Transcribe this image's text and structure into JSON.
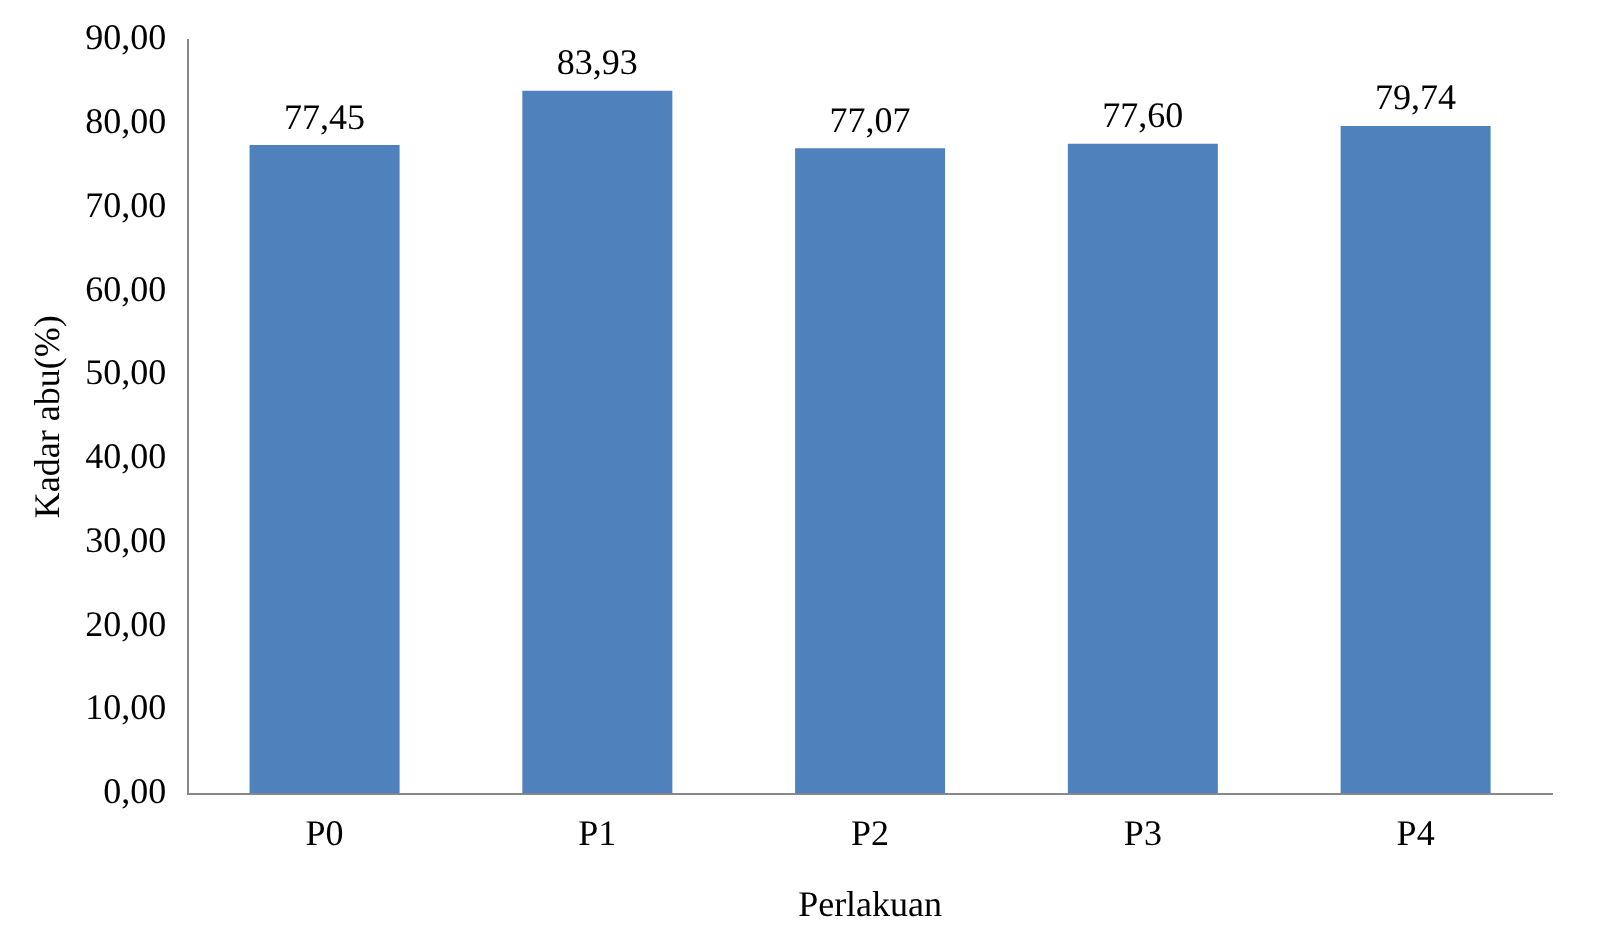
{
  "chart_data": {
    "type": "bar",
    "xlabel": "Perlakuan",
    "ylabel": "Kadar abu(%)",
    "categories": [
      "P0",
      "P1",
      "P2",
      "P3",
      "P4"
    ],
    "values": [
      77.45,
      83.93,
      77.07,
      77.6,
      79.74
    ],
    "value_labels": [
      "77,45",
      "83,93",
      "77,07",
      "77,60",
      "79,74"
    ],
    "color": "#4f81bd",
    "ylim": [
      0,
      90
    ],
    "yticks": [
      {
        "value": 0,
        "label": "0,00"
      },
      {
        "value": 10,
        "label": "10,00"
      },
      {
        "value": 20,
        "label": "20,00"
      },
      {
        "value": 30,
        "label": "30,00"
      },
      {
        "value": 40,
        "label": "40,00"
      },
      {
        "value": 50,
        "label": "50,00"
      },
      {
        "value": 60,
        "label": "60,00"
      },
      {
        "value": 70,
        "label": "70,00"
      },
      {
        "value": 80,
        "label": "80,00"
      },
      {
        "value": 90,
        "label": "90,00"
      }
    ],
    "grid": false,
    "legend": false
  }
}
